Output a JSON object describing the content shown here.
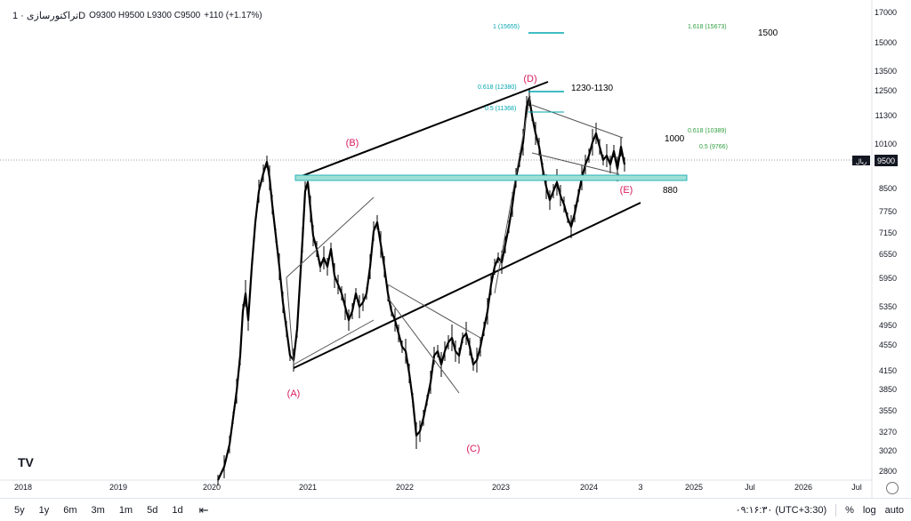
{
  "legend": {
    "symbol": "تراکتورسازی · 1D",
    "ohlc": "O9300 H9500 L9300 C9500",
    "change": "+110 (+1.17%)"
  },
  "price_scale": [
    "17000",
    "15000",
    "13500",
    "12500",
    "11300",
    "10100",
    "9500",
    "8500",
    "7750",
    "7150",
    "6550",
    "5950",
    "5350",
    "4950",
    "4550",
    "4150",
    "3850",
    "3550",
    "3270",
    "3020",
    "2800"
  ],
  "current_price": "9500",
  "currency_tag": "ریال",
  "time_scale": [
    "2018",
    "2019",
    "2020",
    "2021",
    "2022",
    "2023",
    "2024",
    "3",
    "2025",
    "Jul",
    "2026",
    "Jul"
  ],
  "wave_labels": [
    "(A)",
    "(B)",
    "(C)",
    "(D)",
    "(E)"
  ],
  "annotations": {
    "fib_1": "1 (15655)",
    "fib_1618": "1.618 (15673)",
    "target_1500": "1500",
    "fib_0618_d": "0.618 (12380)",
    "zone_1230": "1230-1130",
    "fib_05_d": "0.5 (11368)",
    "fib_0618_r": "0.618 (10389)",
    "fib_05_r": "0.5 (9766)",
    "label_1000": "1000",
    "label_880": "880"
  },
  "timeframes": [
    "5y",
    "1y",
    "6m",
    "3m",
    "1m",
    "5d",
    "1d"
  ],
  "clock": "۰۹:۱۶:۳۰ (UTC+3:30)",
  "scale_buttons": [
    "%",
    "log",
    "auto"
  ],
  "colors": {
    "candles": "#000000",
    "fib_cyan": "#00a6b0",
    "fib_green": "#2e9e3e",
    "wave_label": "#d81b60",
    "zone": "#9fe0d6"
  }
}
